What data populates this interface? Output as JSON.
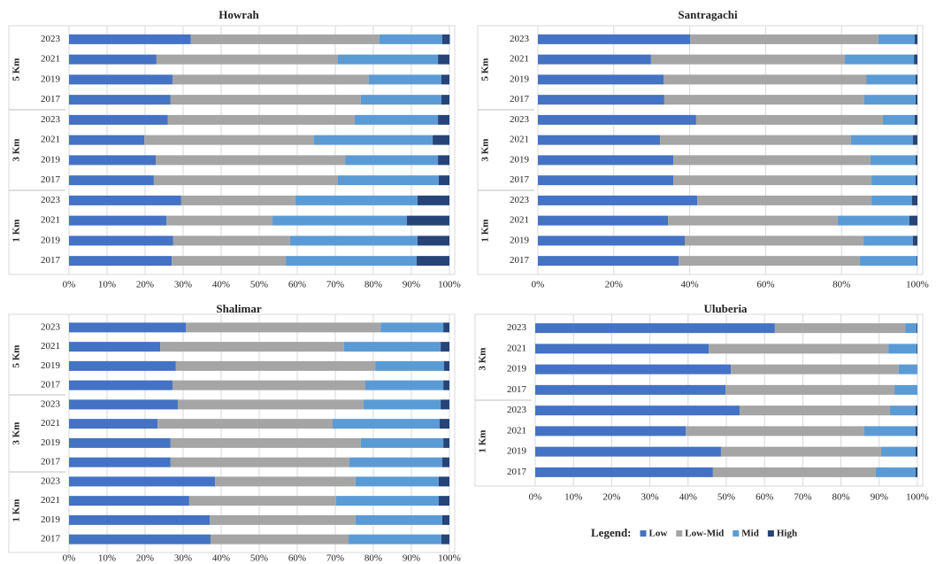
{
  "legend": {
    "title": "Legend:",
    "series": [
      {
        "name": "Low",
        "color": "#4472c4"
      },
      {
        "name": "Low-Mid",
        "color": "#a5a5a5"
      },
      {
        "name": "Mid",
        "color": "#5b9bd5"
      },
      {
        "name": "High",
        "color": "#264478"
      }
    ]
  },
  "chart_data": [
    {
      "type": "bar",
      "orientation": "horizontal",
      "stacked": true,
      "title": "Howrah",
      "grid": true,
      "groups": [
        {
          "name": "5 Km",
          "categories": [
            "2023",
            "2021",
            "2019",
            "2017"
          ]
        },
        {
          "name": "3 Km",
          "categories": [
            "2023",
            "2021",
            "2019",
            "2017"
          ]
        },
        {
          "name": "1 Km",
          "categories": [
            "2023",
            "2021",
            "2019",
            "2017"
          ]
        }
      ],
      "series": [
        {
          "values": [
            32,
            23,
            27.2,
            26.7,
            26,
            19.8,
            22.8,
            22.3,
            29.5,
            25.6,
            27.4,
            27
          ]
        },
        {
          "values": [
            49.6,
            47.7,
            51.6,
            50,
            49.1,
            44.6,
            49.8,
            48.4,
            30,
            27.9,
            30.7,
            30
          ]
        },
        {
          "values": [
            16.5,
            26.3,
            19.1,
            21.2,
            21.9,
            31.2,
            24.4,
            26.5,
            32.1,
            35.3,
            33.5,
            34.4
          ]
        },
        {
          "values": [
            2,
            3,
            2.1,
            2.1,
            3,
            4.4,
            3,
            2.8,
            8.4,
            11.2,
            8.4,
            8.6
          ]
        }
      ],
      "xlim": [
        0,
        100
      ],
      "xticks": [
        {
          "value": 0,
          "label": "0%"
        },
        {
          "value": 10,
          "label": "10%"
        },
        {
          "value": 20,
          "label": "20%"
        },
        {
          "value": 30,
          "label": "30%"
        },
        {
          "value": 40,
          "label": "40%"
        },
        {
          "value": 50,
          "label": "50%"
        },
        {
          "value": 60,
          "label": "60%"
        },
        {
          "value": 70,
          "label": "70%"
        },
        {
          "value": 80,
          "label": "80%"
        },
        {
          "value": 90,
          "label": "90%"
        },
        {
          "value": 100,
          "label": "100%"
        }
      ]
    },
    {
      "type": "bar",
      "orientation": "horizontal",
      "stacked": true,
      "title": "Santragachi",
      "grid": true,
      "groups": [
        {
          "name": "5 Km",
          "categories": [
            "2023",
            "2021",
            "2019",
            "2017"
          ]
        },
        {
          "name": "3 Km",
          "categories": [
            "2023",
            "2021",
            "2019",
            "2017"
          ]
        },
        {
          "name": "1 Km",
          "categories": [
            "2023",
            "2021",
            "2019",
            "2017"
          ]
        }
      ],
      "series": [
        {
          "values": [
            40.1,
            29.8,
            33.1,
            33.3,
            41.7,
            32.2,
            35.7,
            35.7,
            42,
            34.3,
            38.7,
            37.1
          ]
        },
        {
          "values": [
            49.6,
            51.1,
            53.4,
            52.7,
            49.2,
            50.3,
            51.9,
            52.2,
            45.9,
            44.7,
            47.1,
            47.7
          ]
        },
        {
          "values": [
            9.6,
            18.2,
            13,
            13.5,
            8.4,
            16.3,
            11.9,
            11.6,
            10.7,
            18.9,
            13,
            15
          ]
        },
        {
          "values": [
            0.7,
            0.9,
            0.5,
            0.5,
            0.7,
            1.2,
            0.5,
            0.5,
            1.4,
            2.1,
            1.2,
            0.2
          ]
        }
      ],
      "xlim": [
        0,
        100
      ],
      "xticks": [
        {
          "value": 0,
          "label": "0%"
        },
        {
          "value": 20,
          "label": "20%"
        },
        {
          "value": 40,
          "label": "40%"
        },
        {
          "value": 60,
          "label": "60%"
        },
        {
          "value": 80,
          "label": "80%"
        },
        {
          "value": 100,
          "label": "100%"
        }
      ]
    },
    {
      "type": "bar",
      "orientation": "horizontal",
      "stacked": true,
      "title": "Shalimar",
      "grid": true,
      "groups": [
        {
          "name": "5 Km",
          "categories": [
            "2023",
            "2021",
            "2019",
            "2017"
          ]
        },
        {
          "name": "3 Km",
          "categories": [
            "2023",
            "2021",
            "2019",
            "2017"
          ]
        },
        {
          "name": "1 Km",
          "categories": [
            "2023",
            "2021",
            "2019",
            "2017"
          ]
        }
      ],
      "series": [
        {
          "values": [
            30.7,
            24,
            28.1,
            27.2,
            28.6,
            23.3,
            26.7,
            26.7,
            38.4,
            31.6,
            37,
            37.2
          ]
        },
        {
          "values": [
            51.2,
            48.3,
            52.4,
            50.7,
            48.8,
            46,
            50,
            47,
            36.9,
            38.6,
            38.3,
            36.3
          ]
        },
        {
          "values": [
            16.5,
            25.4,
            18.1,
            20.5,
            20.3,
            28.1,
            21.7,
            24.4,
            21.9,
            27,
            22.8,
            24.4
          ]
        },
        {
          "values": [
            1.6,
            2.3,
            1.4,
            1.6,
            2.3,
            2.6,
            1.6,
            1.9,
            2.8,
            2.8,
            1.9,
            2.1
          ]
        }
      ],
      "xlim": [
        0,
        100
      ],
      "xticks": [
        {
          "value": 0,
          "label": "0%"
        },
        {
          "value": 10,
          "label": "10%"
        },
        {
          "value": 20,
          "label": "20%"
        },
        {
          "value": 30,
          "label": "30%"
        },
        {
          "value": 40,
          "label": "40%"
        },
        {
          "value": 50,
          "label": "50%"
        },
        {
          "value": 60,
          "label": "60%"
        },
        {
          "value": 70,
          "label": "70%"
        },
        {
          "value": 80,
          "label": "80%"
        },
        {
          "value": 90,
          "label": "90%"
        },
        {
          "value": 100,
          "label": "100%"
        }
      ]
    },
    {
      "type": "bar",
      "orientation": "horizontal",
      "stacked": true,
      "title": "Uluberia",
      "grid": true,
      "groups": [
        {
          "name": "3 Km",
          "categories": [
            "2023",
            "2021",
            "2019",
            "2017"
          ]
        },
        {
          "name": "1 Km",
          "categories": [
            "2023",
            "2021",
            "2019",
            "2017"
          ]
        }
      ],
      "series": [
        {
          "values": [
            62.7,
            45.4,
            51.2,
            49.8,
            53.5,
            39.4,
            48.6,
            46.5
          ]
        },
        {
          "values": [
            34.1,
            47,
            43.9,
            44.2,
            39.3,
            46.7,
            41.9,
            42.6
          ]
        },
        {
          "values": [
            3,
            7.4,
            4.9,
            6,
            6.7,
            13.4,
            9,
            10.4
          ]
        },
        {
          "values": [
            0.2,
            0.2,
            0,
            0,
            0.5,
            0.5,
            0.5,
            0.5
          ]
        }
      ],
      "xlim": [
        0,
        100
      ],
      "xticks": [
        {
          "value": 0,
          "label": "0%"
        },
        {
          "value": 10,
          "label": "10%"
        },
        {
          "value": 20,
          "label": "20%"
        },
        {
          "value": 30,
          "label": "30%"
        },
        {
          "value": 40,
          "label": "40%"
        },
        {
          "value": 50,
          "label": "50%"
        },
        {
          "value": 60,
          "label": "60%"
        },
        {
          "value": 70,
          "label": "70%"
        },
        {
          "value": 80,
          "label": "80%"
        },
        {
          "value": 90,
          "label": "90%"
        },
        {
          "value": 100,
          "label": "100%"
        }
      ]
    }
  ]
}
